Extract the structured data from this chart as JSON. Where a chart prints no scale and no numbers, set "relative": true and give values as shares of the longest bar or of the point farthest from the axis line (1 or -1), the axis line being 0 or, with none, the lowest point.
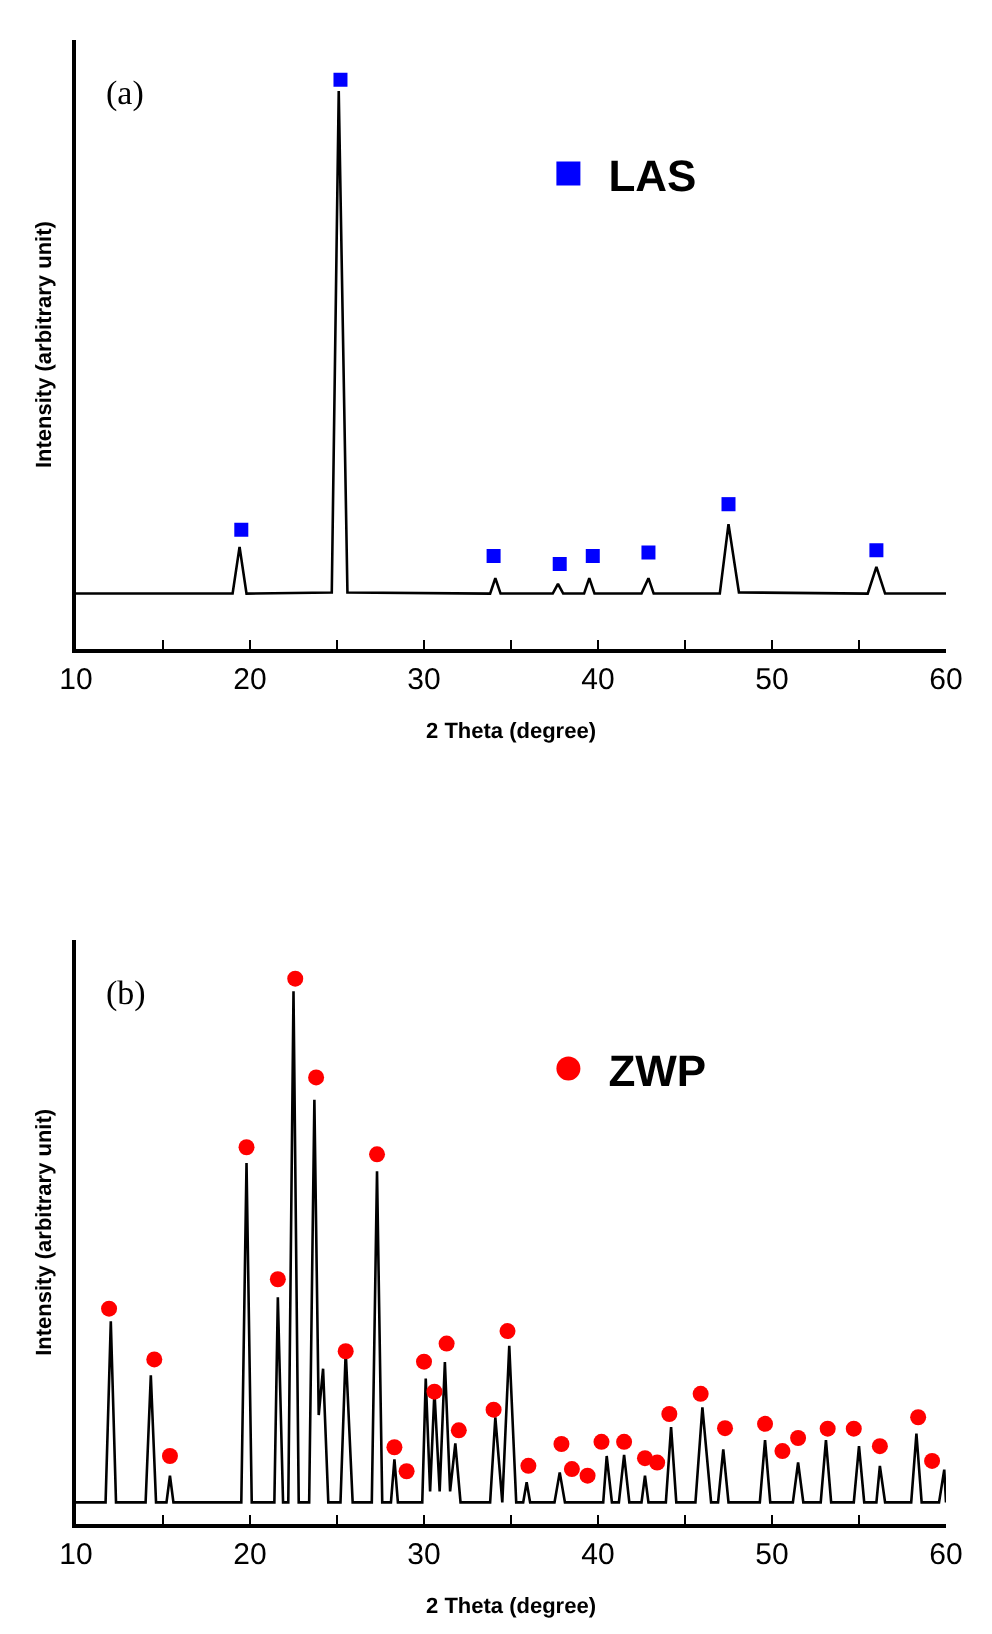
{
  "chart_data": [
    {
      "type": "line",
      "relative": true,
      "xlim": [
        10,
        60
      ],
      "xticks": [
        10,
        {
          "value": 15,
          "label": null
        },
        20,
        {
          "value": 25,
          "label": null
        },
        30,
        {
          "value": 35,
          "label": null
        },
        40,
        {
          "value": 45,
          "label": null
        },
        50,
        {
          "value": 55,
          "label": null
        },
        60
      ],
      "xlabel": "2 Theta (degree)",
      "ylabel": "Intensity (arbitrary unit)",
      "annotations": [
        "(a)"
      ],
      "legend": "top right",
      "series": [
        {
          "color": "#000000",
          "marker": "none",
          "line_style": "solid",
          "x": [
            10,
            19.0,
            19.4,
            19.8,
            24.7,
            25.1,
            25.6,
            33.8,
            34.1,
            34.4,
            37.4,
            37.7,
            38.0,
            39.2,
            39.5,
            39.8,
            42.5,
            42.9,
            43.2,
            47.0,
            47.5,
            48.1,
            55.5,
            56.0,
            56.5,
            60
          ],
          "values": [
            0.098,
            0.098,
            0.18,
            0.098,
            0.1,
            0.98,
            0.1,
            0.098,
            0.125,
            0.098,
            0.098,
            0.115,
            0.098,
            0.098,
            0.125,
            0.098,
            0.098,
            0.125,
            0.098,
            0.098,
            0.22,
            0.1,
            0.098,
            0.145,
            0.098,
            0.098
          ]
        },
        {
          "name": "LAS",
          "type": "scatter",
          "color": "#0000ff",
          "marker": "square",
          "x": [
            19.5,
            25.2,
            34.0,
            37.8,
            39.7,
            42.9,
            47.5,
            56.0
          ],
          "values": [
            0.21,
            1.0,
            0.164,
            0.15,
            0.164,
            0.17,
            0.255,
            0.174
          ]
        }
      ]
    },
    {
      "type": "line",
      "relative": true,
      "xlim": [
        10,
        60
      ],
      "xticks": [
        10,
        {
          "value": 15,
          "label": null
        },
        20,
        {
          "value": 25,
          "label": null
        },
        30,
        {
          "value": 35,
          "label": null
        },
        40,
        {
          "value": 45,
          "label": null
        },
        50,
        {
          "value": 55,
          "label": null
        },
        60
      ],
      "xlabel": "2 Theta (degree)",
      "ylabel": "Intensity (arbitrary unit)",
      "annotations": [
        "(b)"
      ],
      "legend": "top right",
      "series": [
        {
          "color": "#000000",
          "marker": "none",
          "line_style": "solid",
          "x": [
            10,
            11.7,
            12.0,
            12.3,
            14.0,
            14.3,
            14.6,
            15.2,
            15.4,
            15.6,
            19.5,
            19.8,
            20.1,
            21.4,
            21.6,
            21.9,
            22.2,
            22.5,
            22.8,
            23.4,
            23.7,
            23.95,
            24.2,
            24.5,
            25.2,
            25.5,
            25.9,
            27.0,
            27.3,
            27.6,
            28.1,
            28.3,
            28.5,
            29.9,
            30.1,
            30.35,
            30.6,
            30.9,
            31.2,
            31.5,
            31.8,
            32.1,
            33.8,
            34.1,
            34.5,
            34.9,
            35.3,
            35.7,
            35.9,
            36.1,
            37.5,
            37.8,
            38.1,
            40.3,
            40.5,
            40.8,
            41.2,
            41.5,
            41.8,
            42.5,
            42.7,
            42.9,
            43.9,
            44.2,
            44.5,
            45.6,
            46.0,
            46.5,
            46.9,
            47.2,
            47.5,
            49.3,
            49.6,
            49.9,
            51.2,
            51.5,
            51.8,
            52.8,
            53.1,
            53.4,
            54.7,
            55.0,
            55.3,
            56.0,
            56.2,
            56.5,
            58.0,
            58.3,
            58.6,
            59.6,
            59.9,
            60
          ],
          "values": [
            0.04,
            0.04,
            0.372,
            0.04,
            0.04,
            0.273,
            0.04,
            0.04,
            0.089,
            0.04,
            0.04,
            0.662,
            0.04,
            0.04,
            0.416,
            0.04,
            0.04,
            0.977,
            0.04,
            0.04,
            0.778,
            0.2,
            0.285,
            0.04,
            0.04,
            0.317,
            0.04,
            0.04,
            0.647,
            0.04,
            0.04,
            0.119,
            0.04,
            0.04,
            0.267,
            0.06,
            0.243,
            0.06,
            0.297,
            0.06,
            0.148,
            0.04,
            0.04,
            0.196,
            0.04,
            0.327,
            0.04,
            0.04,
            0.077,
            0.04,
            0.04,
            0.095,
            0.04,
            0.04,
            0.125,
            0.04,
            0.04,
            0.127,
            0.04,
            0.04,
            0.089,
            0.04,
            0.04,
            0.178,
            0.04,
            0.04,
            0.214,
            0.04,
            0.04,
            0.137,
            0.04,
            0.04,
            0.154,
            0.04,
            0.04,
            0.113,
            0.04,
            0.04,
            0.154,
            0.04,
            0.04,
            0.143,
            0.04,
            0.04,
            0.107,
            0.04,
            0.04,
            0.166,
            0.04,
            0.04,
            0.1,
            0.04
          ]
        },
        {
          "name": "ZWP",
          "type": "scatter",
          "color": "#ff0000",
          "marker": "circle",
          "x": [
            11.9,
            14.5,
            15.4,
            19.8,
            21.6,
            22.6,
            23.8,
            25.5,
            27.3,
            28.3,
            29.0,
            30.0,
            30.6,
            31.3,
            32.0,
            34.0,
            34.8,
            36.0,
            37.9,
            38.5,
            39.4,
            40.2,
            41.5,
            42.7,
            43.4,
            44.1,
            45.9,
            47.3,
            49.6,
            50.6,
            51.5,
            53.2,
            54.7,
            56.2,
            58.4,
            59.2
          ],
          "values": [
            0.395,
            0.302,
            0.125,
            0.691,
            0.449,
            1.0,
            0.819,
            0.317,
            0.678,
            0.141,
            0.097,
            0.298,
            0.243,
            0.331,
            0.172,
            0.21,
            0.354,
            0.107,
            0.147,
            0.101,
            0.089,
            0.151,
            0.151,
            0.121,
            0.113,
            0.202,
            0.239,
            0.176,
            0.184,
            0.134,
            0.158,
            0.175,
            0.175,
            0.143,
            0.196,
            0.116
          ]
        }
      ]
    }
  ]
}
